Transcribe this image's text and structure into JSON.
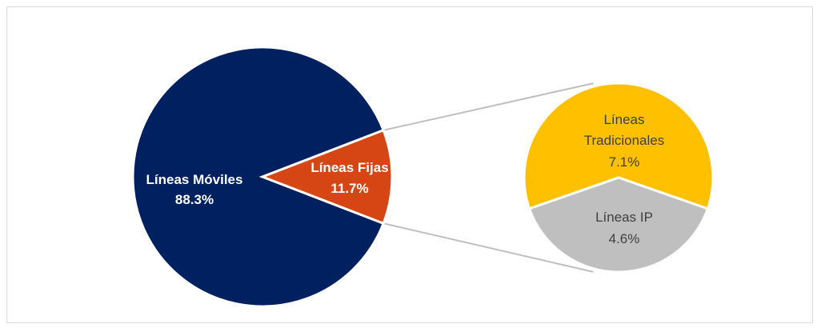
{
  "chart_data": {
    "type": "pie",
    "variant": "bar-of-pie",
    "main": {
      "slices": [
        {
          "label": "Líneas Móviles",
          "value": 88.3,
          "value_label": "88.3%",
          "color": "#002060"
        },
        {
          "label": "Líneas Fijas",
          "value": 11.7,
          "value_label": "11.7%",
          "color": "#D64514"
        }
      ]
    },
    "secondary": {
      "breakdown_of": "Líneas Fijas",
      "slices": [
        {
          "label_lines": [
            "Líneas",
            "Tradicionales"
          ],
          "value": 7.1,
          "value_label": "7.1%",
          "color": "#FFC000"
        },
        {
          "label_lines": [
            "Líneas IP"
          ],
          "value": 4.6,
          "value_label": "4.6%",
          "color": "#BFBFBF"
        }
      ]
    },
    "connector_color": "#BFBFBF",
    "legend": "none"
  }
}
